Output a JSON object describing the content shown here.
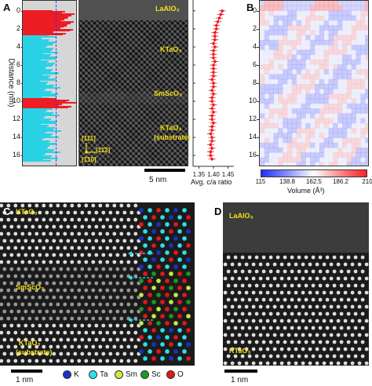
{
  "panels": {
    "A": {
      "letter": "A",
      "layers": [
        "LaAlO3",
        "KTaO3",
        "SmScO3",
        "KTaO3 (substrate)"
      ],
      "layer_labels": {
        "laalo": "LaAlO₃",
        "ktao_top": "KTaO₃",
        "smsco": "SmScO₃",
        "ktao_sub_1": "KTaO₃",
        "ktao_sub_2": "(substrate)"
      },
      "directions": {
        "d111": "[111]",
        "d11_2": "[11̄2]",
        "d1_10": "[1̄10]"
      },
      "scale_bar": "5 nm",
      "y_axis_label": "Distance (nm)",
      "y_ticks": [
        "0",
        "2",
        "4",
        "6",
        "8",
        "10",
        "12",
        "14",
        "16"
      ],
      "ca_ticks": [
        "1.35",
        "1.40",
        "1.45"
      ],
      "ca_axis_label": "Avg. c/a ratio",
      "colors": {
        "red": "#ee1c24",
        "cyan": "#2ad2e6",
        "gray": "#d6d6d6"
      }
    },
    "B": {
      "letter": "B",
      "y_ticks": [
        "0",
        "2",
        "4",
        "6",
        "8",
        "10",
        "12",
        "14",
        "16"
      ],
      "colorbar_ticks": [
        "115",
        "138.8",
        "162.5",
        "186.2",
        "210"
      ],
      "colorbar_label": "Volume (Å³)",
      "colormap": [
        "#1f2fff",
        "#ffffff",
        "#ff2222"
      ]
    },
    "C": {
      "letter": "C",
      "layer_labels": {
        "ktao_top": "KTaO₃",
        "smsco": "SmScO₃",
        "ktao_sub_1": "KTaO₃",
        "ktao_sub_2": "(substrate)"
      },
      "scale_bar": "1 nm",
      "legend": [
        {
          "symbol": "K",
          "color": "#1533c9"
        },
        {
          "symbol": "Ta",
          "color": "#2de0ea"
        },
        {
          "symbol": "Sm",
          "color": "#c6ee3d"
        },
        {
          "symbol": "Sc",
          "color": "#1c9a20"
        },
        {
          "symbol": "O",
          "color": "#e5161c"
        }
      ]
    },
    "D": {
      "letter": "D",
      "layer_labels": {
        "laalo": "LaAlO₃",
        "ktao": "KTaO₃"
      },
      "scale_bar": "1 nm"
    }
  },
  "chart_data": [
    {
      "type": "bar",
      "panel": "A-left",
      "description_axis": "distance",
      "ylabel": "Distance (nm)",
      "ylim": [
        -1.2,
        17.2
      ],
      "y_ticks": [
        0,
        2,
        4,
        6,
        8,
        10,
        12,
        14,
        16
      ],
      "regions": [
        {
          "from": -0.2,
          "to": 2.6,
          "color": "#ee1c24",
          "layer": "LaAlO3"
        },
        {
          "from": 2.6,
          "to": 9.6,
          "color": "#2ad2e6",
          "layer": "KTaO3"
        },
        {
          "from": 9.6,
          "to": 10.7,
          "color": "#ee1c24",
          "layer": "SmScO3"
        },
        {
          "from": 10.7,
          "to": 16.6,
          "color": "#2ad2e6",
          "layer": "KTaO3 (substrate)"
        }
      ]
    },
    {
      "type": "scatter",
      "panel": "A-right",
      "xlabel": "Avg. c/a ratio",
      "xlim": [
        1.33,
        1.47
      ],
      "x_ticks": [
        1.35,
        1.4,
        1.45
      ],
      "ylim": [
        -1.2,
        17.2
      ],
      "series": [
        {
          "y": [
            0.0,
            0.4,
            0.8,
            1.2,
            1.6,
            2.0,
            2.4,
            2.8,
            3.2,
            3.6,
            4.0,
            4.4,
            4.8,
            5.2,
            5.6,
            6.0,
            6.4,
            6.8,
            7.2,
            7.6,
            8.0,
            8.4,
            8.8,
            9.2,
            9.6,
            10.0,
            10.4,
            10.8,
            11.2,
            11.6,
            12.0,
            12.4,
            12.8,
            13.2,
            13.6,
            14.0,
            14.4,
            14.8,
            15.2,
            15.6,
            16.0,
            16.4
          ],
          "x": [
            1.43,
            1.425,
            1.42,
            1.415,
            1.41,
            1.41,
            1.405,
            1.405,
            1.405,
            1.4,
            1.405,
            1.4,
            1.4,
            1.4,
            1.405,
            1.4,
            1.4,
            1.4,
            1.4,
            1.395,
            1.4,
            1.4,
            1.395,
            1.4,
            1.395,
            1.395,
            1.4,
            1.395,
            1.4,
            1.395,
            1.395,
            1.4,
            1.395,
            1.395,
            1.39,
            1.395,
            1.395,
            1.39,
            1.395,
            1.39,
            1.39,
            1.395
          ],
          "xerr": 0.012
        }
      ]
    }
  ]
}
